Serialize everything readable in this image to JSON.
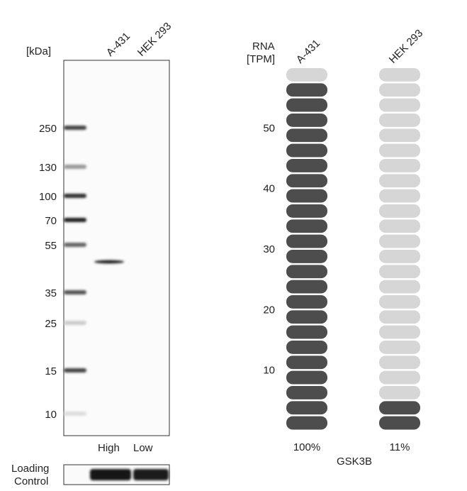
{
  "western_blot": {
    "unit_label": "[kDa]",
    "lanes": [
      "A-431",
      "HEK 293"
    ],
    "markers": [
      "250",
      "130",
      "100",
      "70",
      "55",
      "35",
      "25",
      "15",
      "10"
    ],
    "lane_levels": [
      "High",
      "Low"
    ],
    "loading_control": [
      "Loading",
      "Control"
    ]
  },
  "rna": {
    "axis_label": [
      "RNA",
      "[TPM]"
    ],
    "ylim": [
      0,
      60
    ],
    "yticks": [
      10,
      20,
      30,
      40,
      50
    ],
    "pill_count": 24,
    "samples": [
      {
        "name": "A-431",
        "filled": 23,
        "percent": "100%"
      },
      {
        "name": "HEK 293",
        "filled": 2,
        "percent": "11%"
      }
    ],
    "gene": "GSK3B"
  }
}
